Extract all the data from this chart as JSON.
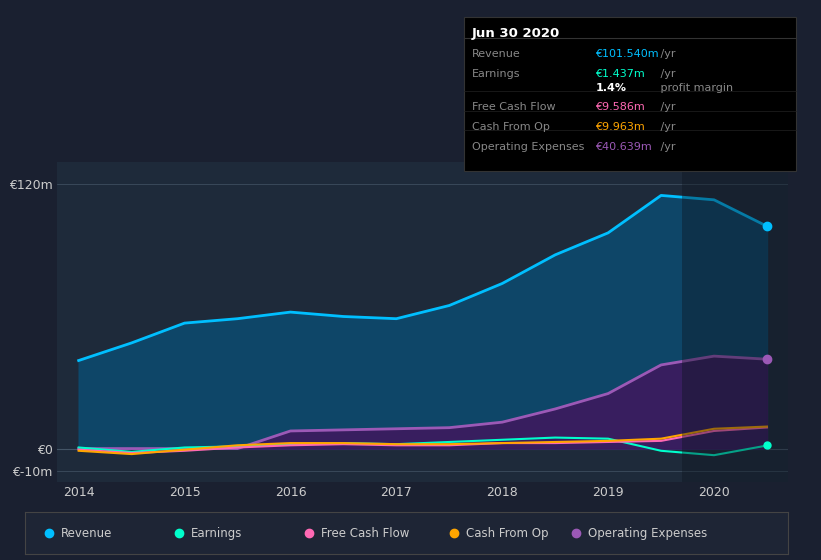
{
  "background_color": "#1a2030",
  "plot_bg_color": "#1e2a3a",
  "years": [
    2014.0,
    2014.5,
    2015.0,
    2015.5,
    2016.0,
    2016.5,
    2017.0,
    2017.5,
    2018.0,
    2018.5,
    2019.0,
    2019.5,
    2020.0,
    2020.5
  ],
  "revenue": [
    40,
    48,
    57,
    59,
    62,
    60,
    59,
    65,
    75,
    88,
    98,
    115,
    113,
    101
  ],
  "earnings": [
    0.5,
    -1.5,
    0.5,
    1.0,
    2.0,
    2.5,
    2.0,
    3.0,
    4.0,
    5.0,
    4.5,
    -1.0,
    -3.0,
    1.4
  ],
  "free_cash_flow": [
    -0.5,
    -2.0,
    -1.0,
    0.5,
    1.5,
    2.0,
    1.5,
    1.5,
    2.5,
    2.5,
    3.0,
    3.5,
    8.0,
    9.6
  ],
  "cash_from_op": [
    -1.0,
    -2.5,
    -0.5,
    1.5,
    2.5,
    2.5,
    2.0,
    2.0,
    2.5,
    3.0,
    3.5,
    4.5,
    9.0,
    10.0
  ],
  "operating_expenses": [
    0,
    0,
    0,
    0,
    8,
    8.5,
    9,
    9.5,
    12,
    18,
    25,
    38,
    42,
    40.6
  ],
  "revenue_color": "#00bfff",
  "earnings_color": "#00ffcc",
  "free_cash_flow_color": "#ff69b4",
  "cash_from_op_color": "#ffa500",
  "operating_expenses_color": "#9b59b6",
  "revenue_fill_color": "#0d4a6e",
  "operating_expenses_fill_color": "#3d1a5e",
  "ylim_min": -15,
  "ylim_max": 130,
  "info_box_title": "Jun 30 2020",
  "legend_items": [
    {
      "label": "Revenue",
      "color": "#00bfff"
    },
    {
      "label": "Earnings",
      "color": "#00ffcc"
    },
    {
      "label": "Free Cash Flow",
      "color": "#ff69b4"
    },
    {
      "label": "Cash From Op",
      "color": "#ffa500"
    },
    {
      "label": "Operating Expenses",
      "color": "#9b59b6"
    }
  ],
  "info_rows": [
    {
      "label": "Revenue",
      "val_colored": "€101.540m",
      "val_rest": " /yr",
      "val_color": "#00bfff"
    },
    {
      "label": "Earnings",
      "val_colored": "€1.437m",
      "val_rest": " /yr",
      "val_color": "#00ffcc"
    },
    {
      "label": "",
      "val_colored": "1.4%",
      "val_rest": " profit margin",
      "val_color": "#ffffff"
    },
    {
      "label": "Free Cash Flow",
      "val_colored": "€9.586m",
      "val_rest": " /yr",
      "val_color": "#ff69b4"
    },
    {
      "label": "Cash From Op",
      "val_colored": "€9.963m",
      "val_rest": " /yr",
      "val_color": "#ffa500"
    },
    {
      "label": "Operating Expenses",
      "val_colored": "€40.639m",
      "val_rest": " /yr",
      "val_color": "#9b59b6"
    }
  ]
}
